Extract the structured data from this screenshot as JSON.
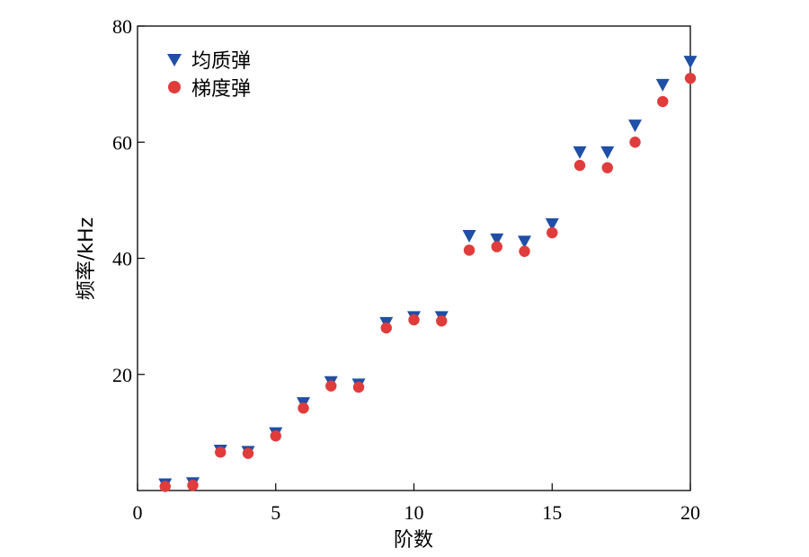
{
  "chart_data": {
    "type": "scatter",
    "xlabel": "阶数",
    "ylabel": "频率/kHz",
    "xlim": [
      0,
      20
    ],
    "ylim": [
      0,
      80
    ],
    "xticks": [
      0,
      5,
      10,
      15,
      20
    ],
    "yticks": [
      20,
      40,
      60,
      80
    ],
    "grid": false,
    "legend_position": "top-left",
    "series": [
      {
        "name": "均质弹",
        "marker": "triangle-down",
        "color": "#1f4fa6",
        "x": [
          1,
          2,
          3,
          4,
          5,
          6,
          7,
          8,
          9,
          10,
          11,
          12,
          13,
          14,
          15,
          16,
          17,
          18,
          19,
          20
        ],
        "y": [
          1.0,
          1.2,
          6.8,
          6.6,
          9.8,
          15.0,
          18.6,
          18.2,
          28.8,
          29.8,
          29.8,
          43.8,
          43.2,
          42.8,
          45.8,
          58.2,
          58.2,
          62.8,
          69.8,
          73.8
        ]
      },
      {
        "name": "梯度弹",
        "marker": "circle",
        "color": "#e03c3c",
        "x": [
          1,
          2,
          3,
          4,
          5,
          6,
          7,
          8,
          9,
          10,
          11,
          12,
          13,
          14,
          15,
          16,
          17,
          18,
          19,
          20
        ],
        "y": [
          0.7,
          0.9,
          6.6,
          6.4,
          9.4,
          14.2,
          18.0,
          17.8,
          28.0,
          29.4,
          29.2,
          41.4,
          42.0,
          41.2,
          44.4,
          56.0,
          55.6,
          60.0,
          67.0,
          71.0
        ]
      }
    ]
  }
}
